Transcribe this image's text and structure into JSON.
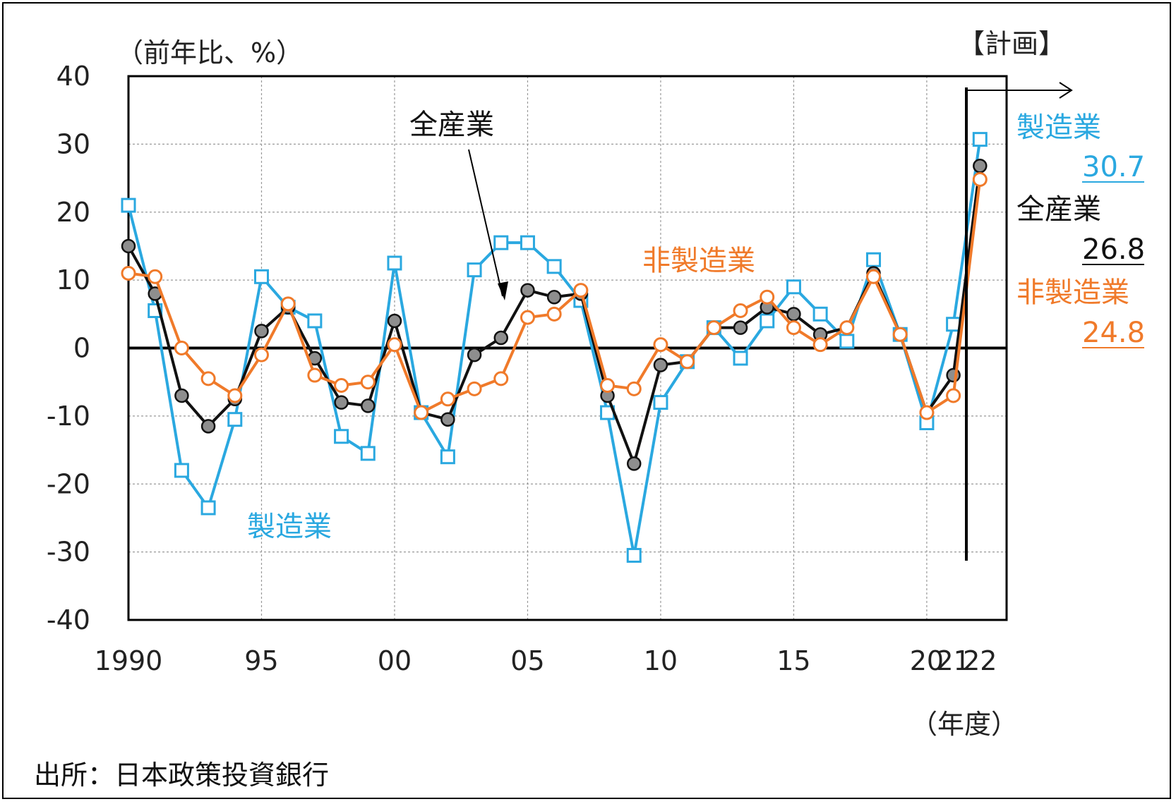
{
  "chart_data": {
    "type": "line",
    "ylabel": "（前年比、%）",
    "xlabel": "（年度）",
    "plan_label": "【計画】",
    "source": "出所：日本政策投資銀行",
    "ylim": [
      -40,
      40
    ],
    "yticks": [
      40,
      30,
      20,
      10,
      0,
      -10,
      -20,
      -30,
      -40
    ],
    "xticks": [
      {
        "x": 1990,
        "label": "1990"
      },
      {
        "x": 1995,
        "label": "95"
      },
      {
        "x": 2000,
        "label": "00"
      },
      {
        "x": 2005,
        "label": "05"
      },
      {
        "x": 2010,
        "label": "10"
      },
      {
        "x": 2015,
        "label": "15"
      },
      {
        "x": 2020,
        "label": "20"
      },
      {
        "x": 2021,
        "label": "21"
      },
      {
        "x": 2022,
        "label": "22"
      }
    ],
    "grid": true,
    "x": [
      1990,
      1991,
      1992,
      1993,
      1994,
      1995,
      1996,
      1997,
      1998,
      1999,
      2000,
      2001,
      2002,
      2003,
      2004,
      2005,
      2006,
      2007,
      2008,
      2009,
      2010,
      2011,
      2012,
      2013,
      2014,
      2015,
      2016,
      2017,
      2018,
      2019,
      2020,
      2021,
      2022
    ],
    "series": [
      {
        "name": "製造業",
        "color": "#2aa8e0",
        "marker": "square",
        "values": [
          21,
          5.5,
          -18,
          -23.5,
          -10.5,
          10.5,
          6,
          4,
          -13,
          -15.5,
          12.5,
          -9.5,
          -16,
          11.5,
          15.5,
          15.5,
          12,
          7,
          -9.5,
          -30.5,
          -8,
          -2,
          3,
          -1.5,
          4,
          9,
          5,
          1,
          13,
          2,
          -11,
          3.5,
          30.7
        ]
      },
      {
        "name": "全産業",
        "color": "#111111",
        "marker": "circle-filled",
        "values": [
          15,
          8,
          -7,
          -11.5,
          -7.5,
          2.5,
          6,
          -1.5,
          -8,
          -8.5,
          4,
          -9.5,
          -10.5,
          -1,
          1.5,
          8.5,
          7.5,
          8,
          -7,
          -17,
          -2.5,
          -2,
          3,
          3,
          6,
          5,
          2,
          3,
          11,
          2,
          -9.5,
          -4,
          26.8
        ]
      },
      {
        "name": "非製造業",
        "color": "#f07a2a",
        "marker": "circle-open",
        "values": [
          11,
          10.5,
          0,
          -4.5,
          -7,
          -1,
          6.5,
          -4,
          -5.5,
          -5,
          0.5,
          -9.5,
          -7.5,
          -6,
          -4.5,
          4.5,
          5,
          8.5,
          -5.5,
          -6,
          0.5,
          -2,
          3,
          5.5,
          7.5,
          3,
          0.5,
          3,
          10.5,
          2,
          -9.5,
          -7,
          24.8
        ]
      }
    ],
    "annotations": {
      "inline_all": "全産業",
      "inline_nonmfg": "非製造業",
      "inline_mfg": "製造業",
      "end_labels": [
        {
          "name": "製造業",
          "value": "30.7",
          "color": "#2aa8e0"
        },
        {
          "name": "全産業",
          "value": "26.8",
          "color": "#111111"
        },
        {
          "name": "非製造業",
          "value": "24.8",
          "color": "#f07a2a"
        }
      ]
    }
  }
}
